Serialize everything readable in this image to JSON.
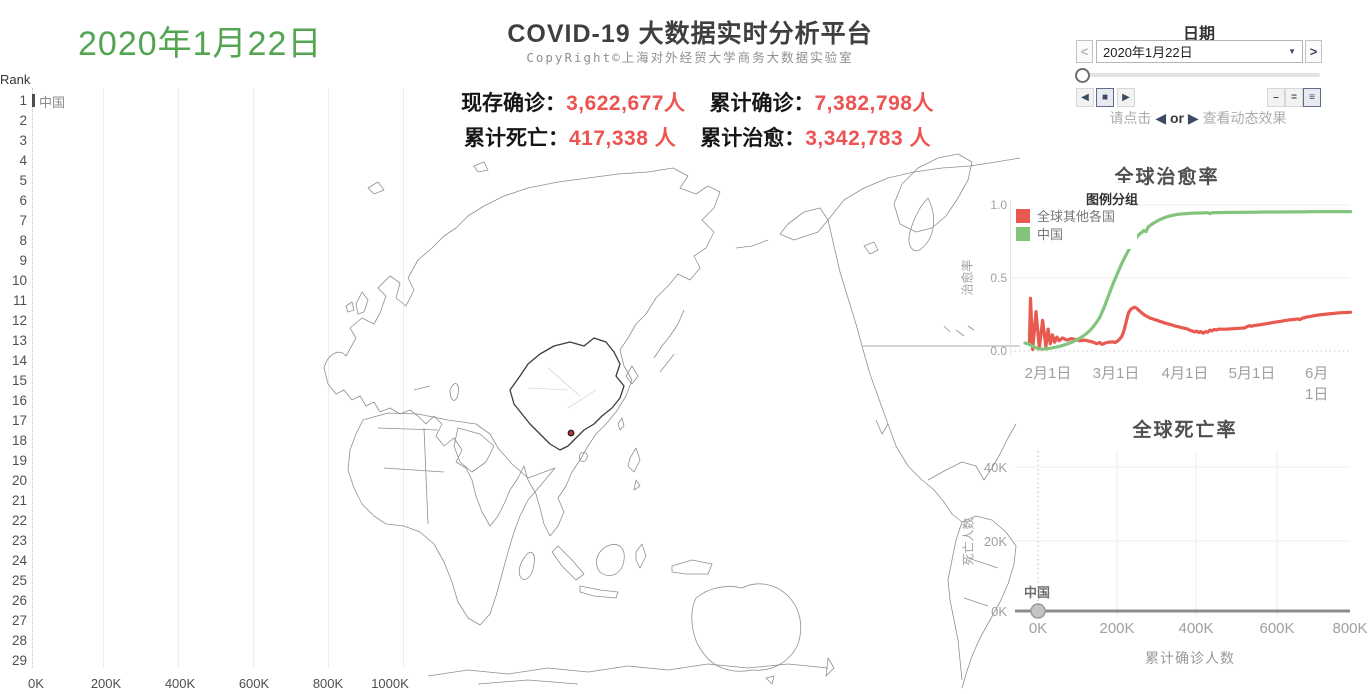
{
  "colors": {
    "date_green": "#53a552",
    "stat_red": "#ed5350",
    "line_red": "#e8594f",
    "line_green": "#82c47c",
    "icon_navy": "#3e4a63",
    "bar_dark": "#4d4d4d",
    "dot_gray": "#c4c4c4"
  },
  "header": {
    "date_display": "2020年1月22日",
    "title": "COVID-19 大数据实时分析平台",
    "subtitle": "CopyRight©上海对外经贸大学商务大数据实验室"
  },
  "stats": {
    "line1": [
      {
        "label": "现存确诊：",
        "value": "3,622,677人"
      },
      {
        "label": "累计确诊：",
        "value": "7,382,798人"
      }
    ],
    "line2": [
      {
        "label": "累计死亡：",
        "value": "417,338 人"
      },
      {
        "label": "累计治愈：",
        "value": "3,342,783 人"
      }
    ]
  },
  "date_panel": {
    "title": "日期",
    "prev_icon": "<",
    "next_icon": ">",
    "selected_date": "2020年1月22日",
    "caret_icon": "▼",
    "step_back_icon": "◀",
    "stop_icon": "■",
    "step_forward_icon": "▶",
    "speed_icons": [
      "–",
      "=",
      "≡"
    ],
    "hint": {
      "prefix": "请点击",
      "back": "◀",
      "or": "or",
      "forward": "▶",
      "suffix": "查看动态效果"
    }
  },
  "chart_data": [
    {
      "type": "bar",
      "header": "Rank",
      "ranks": [
        "1",
        "2",
        "3",
        "4",
        "5",
        "6",
        "7",
        "8",
        "9",
        "10",
        "11",
        "12",
        "13",
        "14",
        "15",
        "16",
        "17",
        "18",
        "19",
        "20",
        "21",
        "22",
        "23",
        "24",
        "25",
        "26",
        "27",
        "28",
        "29"
      ],
      "bars": [
        {
          "rank": "1",
          "label": "中国"
        }
      ],
      "x_ticks": [
        "0K",
        "200K",
        "400K",
        "600K",
        "800K",
        "1000K"
      ],
      "xlim": [
        0,
        1000000
      ]
    },
    {
      "type": "line",
      "title": "全球治愈率",
      "legend_title": "图例分组",
      "ylabel": "治愈率",
      "y_ticks": [
        "1.0",
        "0.5",
        "0.0"
      ],
      "ylim": [
        0,
        1
      ],
      "x_ticks": [
        "2月1日",
        "3月1日",
        "4月1日",
        "5月1日",
        "6月1日"
      ],
      "series": [
        {
          "name": "全球其他各国",
          "color": "#e8594f",
          "points": [
            [
              2,
              0.05
            ],
            [
              2.5,
              0.36
            ],
            [
              3.5,
              0.01
            ],
            [
              5,
              0.27
            ],
            [
              6.5,
              0.02
            ],
            [
              8,
              0.21
            ],
            [
              9.5,
              0.03
            ],
            [
              10.5,
              0.15
            ],
            [
              11.5,
              0.05
            ],
            [
              12.5,
              0.11
            ],
            [
              13.5,
              0.06
            ],
            [
              14.5,
              0.095
            ],
            [
              15.5,
              0.07
            ],
            [
              17,
              0.09
            ],
            [
              19,
              0.075
            ],
            [
              21,
              0.085
            ],
            [
              23,
              0.078
            ],
            [
              25,
              0.07
            ],
            [
              27,
              0.075
            ],
            [
              29,
              0.068
            ],
            [
              31,
              0.06
            ],
            [
              32.5,
              0.05
            ],
            [
              34,
              0.058
            ],
            [
              35,
              0.045
            ],
            [
              36.5,
              0.055
            ],
            [
              38,
              0.06
            ],
            [
              40,
              0.062
            ],
            [
              41,
              0.058
            ],
            [
              42,
              0.068
            ],
            [
              43,
              0.08
            ],
            [
              44,
              0.1
            ],
            [
              45,
              0.14
            ],
            [
              46,
              0.2
            ],
            [
              47,
              0.26
            ],
            [
              48,
              0.285
            ],
            [
              49,
              0.295
            ],
            [
              50,
              0.3
            ],
            [
              51,
              0.29
            ],
            [
              52,
              0.275
            ],
            [
              53,
              0.262
            ],
            [
              54,
              0.25
            ],
            [
              55,
              0.24
            ],
            [
              56,
              0.232
            ],
            [
              57,
              0.225
            ],
            [
              58,
              0.22
            ],
            [
              60,
              0.21
            ],
            [
              62,
              0.2
            ],
            [
              64,
              0.19
            ],
            [
              66,
              0.182
            ],
            [
              68,
              0.172
            ],
            [
              70,
              0.165
            ],
            [
              72,
              0.157
            ],
            [
              74,
              0.15
            ],
            [
              75,
              0.142
            ],
            [
              76,
              0.138
            ],
            [
              77,
              0.13
            ],
            [
              78,
              0.136
            ],
            [
              79,
              0.127
            ],
            [
              80,
              0.133
            ],
            [
              81,
              0.122
            ],
            [
              82,
              0.132
            ],
            [
              83,
              0.128
            ],
            [
              84,
              0.143
            ],
            [
              85,
              0.138
            ],
            [
              86,
              0.148
            ],
            [
              87,
              0.144
            ],
            [
              88,
              0.15
            ],
            [
              90,
              0.149
            ],
            [
              92,
              0.15
            ],
            [
              94,
              0.152
            ],
            [
              96,
              0.154
            ],
            [
              98,
              0.156
            ],
            [
              100,
              0.158
            ],
            [
              101,
              0.168
            ],
            [
              102,
              0.173
            ],
            [
              103,
              0.169
            ],
            [
              104,
              0.174
            ],
            [
              106,
              0.178
            ],
            [
              108,
              0.183
            ],
            [
              110,
              0.188
            ],
            [
              112,
              0.193
            ],
            [
              114,
              0.198
            ],
            [
              116,
              0.203
            ],
            [
              118,
              0.208
            ],
            [
              120,
              0.213
            ],
            [
              122,
              0.216
            ],
            [
              124,
              0.22
            ],
            [
              125,
              0.215
            ],
            [
              126,
              0.224
            ],
            [
              128,
              0.232
            ],
            [
              130,
              0.238
            ],
            [
              132,
              0.243
            ],
            [
              134,
              0.248
            ],
            [
              136,
              0.251
            ],
            [
              138,
              0.254
            ],
            [
              140,
              0.257
            ],
            [
              142,
              0.26
            ],
            [
              144,
              0.262
            ],
            [
              146,
              0.264
            ],
            [
              148,
              0.266
            ]
          ]
        },
        {
          "name": "中国",
          "color": "#82c47c",
          "points": [
            [
              0,
              0.055
            ],
            [
              2,
              0.045
            ],
            [
              4,
              0.028
            ],
            [
              6,
              0.015
            ],
            [
              8,
              0.012
            ],
            [
              10,
              0.015
            ],
            [
              12,
              0.02
            ],
            [
              14,
              0.026
            ],
            [
              16,
              0.033
            ],
            [
              18,
              0.042
            ],
            [
              20,
              0.052
            ],
            [
              22,
              0.065
            ],
            [
              24,
              0.08
            ],
            [
              26,
              0.098
            ],
            [
              28,
              0.12
            ],
            [
              30,
              0.148
            ],
            [
              32,
              0.185
            ],
            [
              34,
              0.23
            ],
            [
              36,
              0.3
            ],
            [
              38,
              0.38
            ],
            [
              40,
              0.46
            ],
            [
              42,
              0.53
            ],
            [
              44,
              0.6
            ],
            [
              46,
              0.66
            ],
            [
              48,
              0.715
            ],
            [
              50,
              0.765
            ],
            [
              52,
              0.8
            ],
            [
              54,
              0.825
            ],
            [
              55,
              0.818
            ],
            [
              56,
              0.85
            ],
            [
              58,
              0.872
            ],
            [
              60,
              0.89
            ],
            [
              62,
              0.905
            ],
            [
              64,
              0.917
            ],
            [
              66,
              0.926
            ],
            [
              68,
              0.932
            ],
            [
              70,
              0.937
            ],
            [
              72,
              0.94
            ],
            [
              74,
              0.942
            ],
            [
              76,
              0.944
            ],
            [
              78,
              0.945
            ],
            [
              80,
              0.945
            ],
            [
              83,
              0.947
            ],
            [
              84,
              0.941
            ],
            [
              85,
              0.947
            ],
            [
              88,
              0.948
            ],
            [
              92,
              0.949
            ],
            [
              96,
              0.95
            ],
            [
              100,
              0.95
            ],
            [
              105,
              0.951
            ],
            [
              110,
              0.952
            ],
            [
              115,
              0.952
            ],
            [
              120,
              0.953
            ],
            [
              125,
              0.953
            ],
            [
              130,
              0.954
            ],
            [
              135,
              0.954
            ],
            [
              140,
              0.955
            ],
            [
              145,
              0.955
            ],
            [
              148,
              0.955
            ]
          ]
        }
      ]
    },
    {
      "type": "scatter",
      "title": "全球死亡率",
      "xlabel": "累计确诊人数",
      "ylabel": "死亡人数",
      "x_ticks": [
        "0K",
        "200K",
        "400K",
        "600K",
        "800K"
      ],
      "y_ticks": [
        "40K",
        "20K",
        "0K"
      ],
      "xlim": [
        0,
        800000
      ],
      "ylim": [
        0,
        45000
      ],
      "points": [
        {
          "name": "中国",
          "x": 0,
          "y": 0
        }
      ]
    }
  ]
}
